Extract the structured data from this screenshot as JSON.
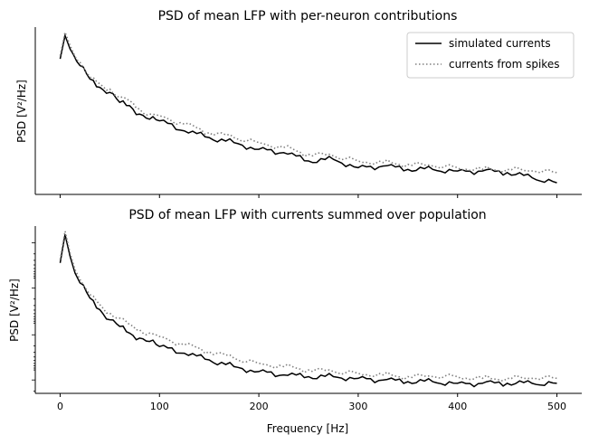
{
  "figure": {
    "top_title": "PSD of mean LFP with per-neuron contributions",
    "bottom_title": "PSD of mean LFP with currents summed over population",
    "top_ylabel": "PSD [V²/Hz]",
    "bottom_ylabel": "PSD [V²/Hz]",
    "xlabel": "Frequency [Hz]",
    "legend": {
      "simulated": "simulated currents",
      "spikes": "currents from spikes"
    },
    "xticks": [
      "0",
      "100",
      "200",
      "300",
      "400",
      "500"
    ]
  },
  "colors": {
    "simulated": "#000000",
    "spikes": "#808080"
  },
  "chart_data": [
    {
      "type": "line",
      "title": "PSD of mean LFP with per-neuron contributions",
      "xlabel": "",
      "ylabel": "PSD [V²/Hz]",
      "xlim": [
        -25,
        525
      ],
      "ylim": [
        0,
        1
      ],
      "legend_placement": "top-right",
      "grid": false,
      "y_ticks_shown": false,
      "x": [
        0,
        5,
        10,
        20,
        30,
        40,
        50,
        60,
        70,
        80,
        90,
        100,
        125,
        150,
        175,
        200,
        225,
        250,
        275,
        300,
        325,
        350,
        375,
        400,
        425,
        450,
        475,
        500
      ],
      "series": [
        {
          "name": "simulated currents",
          "style": "solid",
          "values": [
            0.81,
            0.95,
            0.87,
            0.77,
            0.69,
            0.64,
            0.61,
            0.55,
            0.53,
            0.48,
            0.45,
            0.44,
            0.38,
            0.34,
            0.31,
            0.27,
            0.25,
            0.2,
            0.21,
            0.16,
            0.17,
            0.15,
            0.15,
            0.14,
            0.14,
            0.13,
            0.1,
            0.07
          ]
        },
        {
          "name": "currents from spikes",
          "style": "dotted",
          "values": [
            0.83,
            0.97,
            0.89,
            0.79,
            0.7,
            0.66,
            0.63,
            0.58,
            0.56,
            0.51,
            0.48,
            0.47,
            0.42,
            0.37,
            0.34,
            0.31,
            0.28,
            0.24,
            0.23,
            0.2,
            0.19,
            0.18,
            0.17,
            0.16,
            0.15,
            0.15,
            0.14,
            0.13
          ]
        }
      ]
    },
    {
      "type": "line",
      "title": "PSD of mean LFP with currents summed over population",
      "xlabel": "Frequency [Hz]",
      "ylabel": "PSD [V²/Hz]",
      "xlim": [
        -25,
        525
      ],
      "ylim": [
        0,
        1
      ],
      "y_scale": "log",
      "grid": false,
      "y_ticks_shown": false,
      "x": [
        0,
        5,
        10,
        15,
        20,
        30,
        40,
        50,
        60,
        70,
        80,
        90,
        100,
        125,
        150,
        175,
        200,
        225,
        250,
        275,
        300,
        325,
        350,
        375,
        400,
        425,
        450,
        475,
        500
      ],
      "series": [
        {
          "name": "simulated currents",
          "style": "solid",
          "values": [
            0.78,
            0.95,
            0.82,
            0.72,
            0.66,
            0.57,
            0.5,
            0.44,
            0.4,
            0.36,
            0.33,
            0.31,
            0.28,
            0.24,
            0.2,
            0.16,
            0.13,
            0.11,
            0.1,
            0.1,
            0.09,
            0.08,
            0.07,
            0.07,
            0.06,
            0.06,
            0.06,
            0.06,
            0.06
          ]
        },
        {
          "name": "currents from spikes",
          "style": "dotted",
          "values": [
            0.8,
            0.97,
            0.84,
            0.74,
            0.68,
            0.59,
            0.53,
            0.48,
            0.45,
            0.41,
            0.38,
            0.36,
            0.34,
            0.29,
            0.25,
            0.21,
            0.18,
            0.16,
            0.14,
            0.13,
            0.12,
            0.11,
            0.1,
            0.1,
            0.1,
            0.09,
            0.09,
            0.09,
            0.09
          ]
        }
      ]
    }
  ]
}
